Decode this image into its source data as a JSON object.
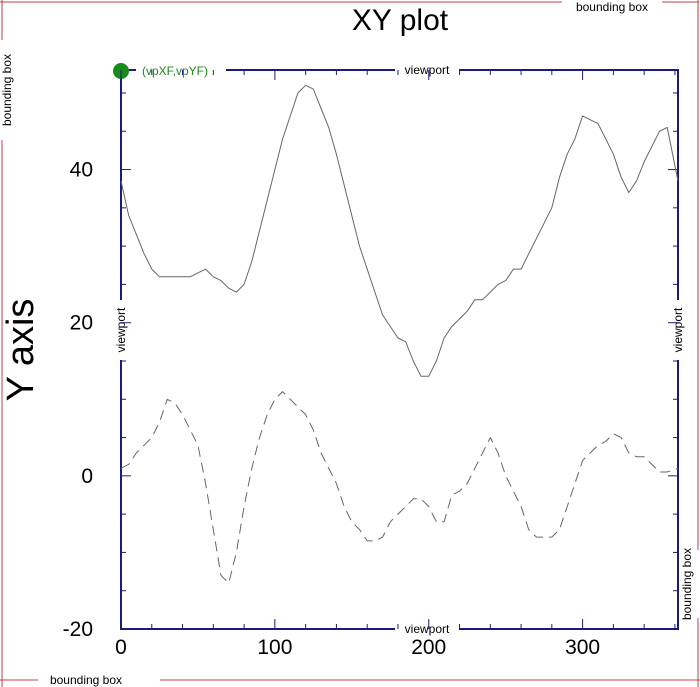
{
  "chart_data": {
    "type": "line",
    "title": "XY plot",
    "xlabel": "",
    "ylabel": "Y axis",
    "xlim": [
      0,
      362
    ],
    "ylim": [
      -20,
      53
    ],
    "xticks": [
      0,
      100,
      200,
      300
    ],
    "xtick_labels": [
      "0",
      "100",
      "200",
      "300"
    ],
    "yticks": [
      -20,
      0,
      20,
      40
    ],
    "ytick_labels": [
      "-20",
      "0",
      "20",
      "40"
    ],
    "grid": false,
    "legend": "none",
    "colors": {
      "frame": "#1a1a80",
      "bounding_box": "#c04040",
      "series": "#666666",
      "vp_marker": "#1a8a1a"
    },
    "series": [
      {
        "style": "solid",
        "x": [
          0,
          5,
          10,
          15,
          20,
          25,
          28,
          35,
          40,
          45,
          50,
          55,
          60,
          65,
          70,
          75,
          80,
          85,
          90,
          95,
          100,
          105,
          110,
          115,
          120,
          125,
          130,
          135,
          140,
          145,
          150,
          155,
          160,
          165,
          170,
          175,
          180,
          185,
          190,
          195,
          200,
          205,
          210,
          215,
          220,
          225,
          230,
          235,
          240,
          245,
          250,
          255,
          260,
          265,
          270,
          275,
          280,
          285,
          290,
          295,
          300,
          305,
          310,
          315,
          320,
          325,
          330,
          335,
          340,
          345,
          350,
          355,
          362
        ],
        "y": [
          38.5,
          34,
          31.5,
          29,
          27,
          26,
          26,
          26,
          26,
          26,
          26.5,
          27,
          26,
          25.5,
          24.5,
          24,
          25,
          28,
          32,
          36,
          40,
          44,
          47,
          50,
          51,
          50.5,
          48,
          45.5,
          42,
          38,
          34,
          30,
          27,
          24,
          21,
          19.5,
          18,
          17.5,
          15,
          13,
          13,
          15,
          18,
          19.5,
          20.5,
          21.5,
          23,
          23,
          24,
          25,
          25.5,
          27,
          27,
          29,
          31,
          33,
          35,
          39,
          42,
          44,
          47,
          46.5,
          46,
          44,
          42,
          39,
          37,
          38.5,
          41,
          43,
          45,
          45.5,
          38.5
        ]
      },
      {
        "style": "dashed",
        "x": [
          0,
          5,
          10,
          15,
          20,
          25,
          30,
          35,
          40,
          45,
          50,
          55,
          60,
          65,
          70,
          75,
          80,
          85,
          90,
          95,
          100,
          105,
          110,
          115,
          120,
          125,
          130,
          135,
          140,
          145,
          150,
          155,
          160,
          165,
          170,
          175,
          180,
          185,
          190,
          195,
          200,
          205,
          210,
          215,
          220,
          225,
          230,
          235,
          240,
          245,
          250,
          255,
          260,
          265,
          270,
          275,
          280,
          285,
          290,
          295,
          300,
          305,
          310,
          315,
          320,
          325,
          330,
          335,
          340,
          345,
          350,
          355,
          362
        ],
        "y": [
          1,
          1.5,
          3,
          4,
          5,
          7,
          10,
          9.5,
          8,
          6,
          4,
          -1,
          -7,
          -13,
          -14,
          -10,
          -4,
          1,
          5,
          8,
          10,
          11,
          10,
          9,
          8,
          6,
          3,
          1,
          -1,
          -4,
          -6,
          -7,
          -8.5,
          -8.5,
          -8,
          -6,
          -5,
          -4,
          -3,
          -3,
          -4,
          -6,
          -6,
          -2.5,
          -2,
          -1,
          1,
          3,
          5,
          3,
          0,
          -2,
          -4,
          -7,
          -8,
          -8,
          -8,
          -7,
          -4,
          -1,
          2,
          3,
          4,
          4.5,
          5.5,
          5,
          3,
          2.5,
          2.5,
          1.5,
          0.5,
          0.5,
          1
        ]
      }
    ]
  },
  "annotations": {
    "bounding_box": "bounding box",
    "viewport": "viewport",
    "vp_point": "(vpXF,vpYF)"
  }
}
